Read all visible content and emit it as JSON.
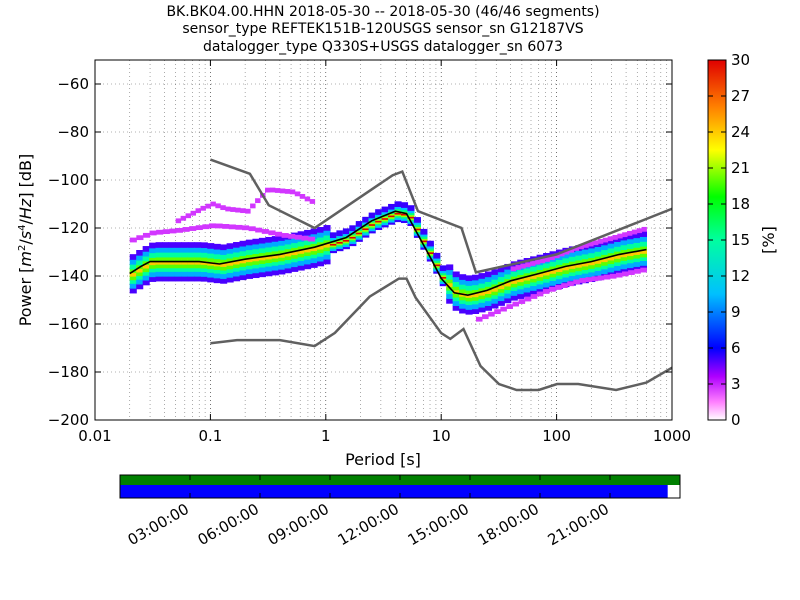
{
  "title_lines": [
    "BK.BK04.00.HHN   2018-05-30 -- 2018-05-30  (46/46 segments)",
    "sensor_type REFTEK151B-120USGS sensor_sn G12187VS",
    "datalogger_type Q330S+USGS datalogger_sn 6073"
  ],
  "colors": {
    "noise_model": "#606060",
    "mean_curve": "#000000",
    "coverage_data": "#008000",
    "coverage_gaps": "#0000ff"
  },
  "chart_data": {
    "type": "heatmap",
    "xlabel": "Period [s]",
    "ylabel_parts": [
      "Power [",
      "m",
      "2",
      "/",
      "s",
      "4",
      "/",
      "Hz",
      "] [dB]"
    ],
    "xscale": "log",
    "xlim": [
      0.01,
      1000
    ],
    "ylim": [
      -200,
      -50
    ],
    "x_ticks": [
      0.01,
      0.1,
      1,
      10,
      100,
      1000
    ],
    "x_tick_labels": [
      "0.01",
      "0.1",
      "1",
      "10",
      "100",
      "1000"
    ],
    "y_ticks": [
      -200,
      -180,
      -160,
      -140,
      -120,
      -100,
      -80,
      -60
    ],
    "y_tick_labels": [
      "−200",
      "−180",
      "−160",
      "−140",
      "−120",
      "−100",
      "−80",
      "−60"
    ],
    "grid": true,
    "colorbar": {
      "label": "[%]",
      "range": [
        0,
        30
      ],
      "ticks": [
        0,
        3,
        6,
        9,
        12,
        15,
        18,
        21,
        24,
        27,
        30
      ],
      "tick_labels": [
        "0",
        "3",
        "6",
        "9",
        "12",
        "15",
        "18",
        "21",
        "24",
        "27",
        "30"
      ]
    },
    "high_noise_model": {
      "x": [
        0.1,
        0.22,
        0.32,
        0.8,
        3.8,
        4.6,
        6.3,
        15,
        20,
        100,
        1000
      ],
      "y": [
        -91.5,
        -97.4,
        -110.5,
        -120,
        -98,
        -96.5,
        -113,
        -120,
        -138.5,
        -131,
        -112
      ]
    },
    "low_noise_model": {
      "x": [
        0.1,
        0.17,
        0.4,
        0.8,
        1.2,
        2.4,
        4.3,
        5,
        6,
        10,
        12,
        15.6,
        21.9,
        31.6,
        45,
        70,
        101,
        154,
        328,
        600,
        1000
      ],
      "y": [
        -168,
        -166.7,
        -166.7,
        -169.2,
        -163.7,
        -148.6,
        -141.1,
        -141.1,
        -149,
        -163.8,
        -166.2,
        -162.1,
        -177.5,
        -185,
        -187.5,
        -187.5,
        -185,
        -185,
        -187.5,
        -184.4,
        -178.2
      ]
    },
    "mean_psd": {
      "x": [
        0.02,
        0.025,
        0.03,
        0.05,
        0.08,
        0.12,
        0.2,
        0.4,
        0.8,
        1.5,
        2.5,
        4,
        5,
        6,
        8,
        10,
        13,
        17,
        25,
        40,
        70,
        120,
        200,
        350,
        600
      ],
      "y": [
        -139,
        -136,
        -134,
        -134,
        -134,
        -135,
        -133,
        -131,
        -128,
        -124,
        -117,
        -113,
        -114,
        -121,
        -132,
        -141,
        -147,
        -148,
        -146,
        -142,
        -139,
        -136,
        -134,
        -131,
        -129
      ]
    },
    "psd_band_offsets": [
      -7,
      -5,
      -3,
      -1.5,
      0,
      1.5,
      3,
      5,
      7
    ],
    "psd_band_density": [
      5,
      10,
      15,
      20,
      24,
      20,
      15,
      10,
      5
    ],
    "outlier_traces": [
      {
        "x": [
          0.05,
          0.08,
          0.1,
          0.13,
          0.2,
          0.3,
          0.5,
          0.8
        ],
        "y": [
          -117,
          -112,
          -110,
          -112,
          -113,
          -104,
          -105,
          -110
        ]
      },
      {
        "x": [
          0.02,
          0.03,
          0.05,
          0.1,
          0.2,
          0.4,
          0.8
        ],
        "y": [
          -125,
          -122,
          -121,
          -119,
          -120,
          -123,
          -125
        ]
      },
      {
        "x": [
          20,
          40,
          80,
          150,
          300,
          600
        ],
        "y": [
          -158,
          -152,
          -146,
          -142,
          -140,
          -137
        ]
      },
      {
        "x": [
          40,
          80,
          150,
          300,
          600
        ],
        "y": [
          -137,
          -133,
          -128,
          -124,
          -120
        ]
      }
    ]
  },
  "coverage": {
    "time_ticks": [
      "03:00:00",
      "06:00:00",
      "09:00:00",
      "12:00:00",
      "15:00:00",
      "18:00:00",
      "21:00:00"
    ],
    "time_tick_hours": [
      3,
      6,
      9,
      12,
      15,
      18,
      21
    ],
    "range_hours": [
      0,
      24
    ],
    "data_fraction": 1.0,
    "gap_fraction_end": 0.978
  }
}
